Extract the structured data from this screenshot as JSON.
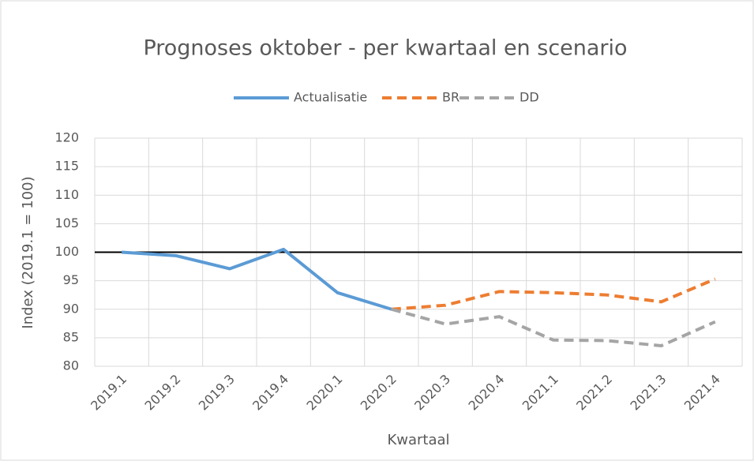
{
  "chart_data": {
    "type": "line",
    "title": "Prognoses oktober - per kwartaal en scenario",
    "x_label": "Kwartaal",
    "y_label": "Index (2019.1 = 100)",
    "categories": [
      "2019.1",
      "2019.2",
      "2019.3",
      "2019.4",
      "2020.1",
      "2020.2",
      "2020.3",
      "2020.4",
      "2021.1",
      "2021.2",
      "2021.3",
      "2021.4"
    ],
    "series": [
      {
        "name": "Actualisatie",
        "color": "#5b9bd5",
        "dash": false,
        "values": [
          100,
          99.4,
          97.1,
          100.5,
          92.9,
          90,
          null,
          null,
          null,
          null,
          null,
          null
        ]
      },
      {
        "name": "BR",
        "color": "#ed7d31",
        "dash": true,
        "values": [
          null,
          null,
          null,
          null,
          null,
          90,
          90.7,
          93.1,
          92.9,
          92.5,
          91.3,
          95.3
        ]
      },
      {
        "name": "DD",
        "color": "#a5a5a5",
        "dash": true,
        "values": [
          null,
          null,
          null,
          null,
          null,
          90,
          87.4,
          88.7,
          84.6,
          84.5,
          83.6,
          87.8
        ]
      }
    ],
    "reference_line": 100,
    "ylim": [
      80,
      120
    ],
    "yticks": [
      80,
      85,
      90,
      95,
      100,
      105,
      110,
      115,
      120
    ],
    "grid": true,
    "legend": "top"
  }
}
